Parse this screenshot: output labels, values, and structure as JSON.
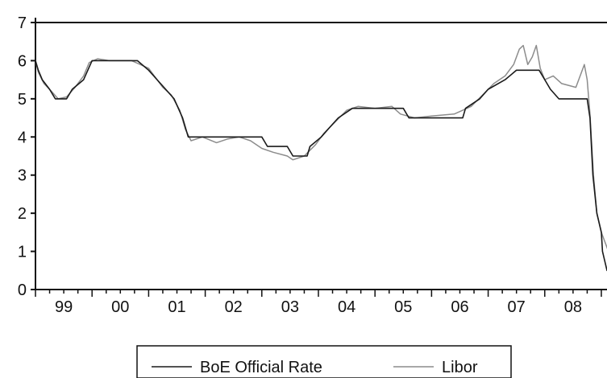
{
  "chart_data": {
    "type": "line",
    "title": "",
    "xlabel": "",
    "ylabel": "",
    "ylim": [
      0,
      7
    ],
    "yticks": [
      0,
      1,
      2,
      3,
      4,
      5,
      6,
      7
    ],
    "xlim": [
      1999.0,
      2009.1
    ],
    "xticks": [
      {
        "label": "99",
        "pos": 1999.5
      },
      {
        "label": "00",
        "pos": 2000.5
      },
      {
        "label": "01",
        "pos": 2001.5
      },
      {
        "label": "02",
        "pos": 2002.5
      },
      {
        "label": "03",
        "pos": 2003.5
      },
      {
        "label": "04",
        "pos": 2004.5
      },
      {
        "label": "05",
        "pos": 2005.5
      },
      {
        "label": "06",
        "pos": 2006.5
      },
      {
        "label": "07",
        "pos": 2007.5
      },
      {
        "label": "08",
        "pos": 2008.5
      }
    ],
    "grid": false,
    "legend_position": "bottom",
    "series": [
      {
        "name": "BoE Official Rate",
        "color": "#1a1a1a",
        "points": [
          [
            1999.0,
            6.0
          ],
          [
            1999.05,
            5.75
          ],
          [
            1999.12,
            5.5
          ],
          [
            1999.25,
            5.25
          ],
          [
            1999.35,
            5.0
          ],
          [
            1999.55,
            5.0
          ],
          [
            1999.65,
            5.25
          ],
          [
            1999.85,
            5.5
          ],
          [
            2000.0,
            6.0
          ],
          [
            2000.5,
            6.0
          ],
          [
            2000.8,
            6.0
          ],
          [
            2001.0,
            5.75
          ],
          [
            2001.15,
            5.5
          ],
          [
            2001.3,
            5.25
          ],
          [
            2001.45,
            5.0
          ],
          [
            2001.6,
            4.5
          ],
          [
            2001.7,
            4.0
          ],
          [
            2002.0,
            4.0
          ],
          [
            2002.5,
            4.0
          ],
          [
            2003.0,
            4.0
          ],
          [
            2003.1,
            3.75
          ],
          [
            2003.45,
            3.75
          ],
          [
            2003.55,
            3.5
          ],
          [
            2003.8,
            3.5
          ],
          [
            2003.85,
            3.75
          ],
          [
            2004.05,
            4.0
          ],
          [
            2004.2,
            4.25
          ],
          [
            2004.35,
            4.5
          ],
          [
            2004.6,
            4.75
          ],
          [
            2005.5,
            4.75
          ],
          [
            2005.6,
            4.5
          ],
          [
            2006.55,
            4.5
          ],
          [
            2006.6,
            4.75
          ],
          [
            2006.85,
            5.0
          ],
          [
            2007.0,
            5.25
          ],
          [
            2007.3,
            5.5
          ],
          [
            2007.5,
            5.75
          ],
          [
            2007.9,
            5.75
          ],
          [
            2008.0,
            5.5
          ],
          [
            2008.1,
            5.25
          ],
          [
            2008.25,
            5.0
          ],
          [
            2008.75,
            5.0
          ],
          [
            2008.8,
            4.5
          ],
          [
            2008.85,
            3.0
          ],
          [
            2008.92,
            2.0
          ],
          [
            2009.0,
            1.5
          ],
          [
            2009.02,
            1.0
          ],
          [
            2009.1,
            0.5
          ],
          [
            2009.25,
            0.5
          ]
        ]
      },
      {
        "name": "Libor",
        "color": "#8c8c8c",
        "points": [
          [
            1999.0,
            6.0
          ],
          [
            1999.05,
            5.7
          ],
          [
            1999.15,
            5.4
          ],
          [
            1999.28,
            5.2
          ],
          [
            1999.4,
            5.0
          ],
          [
            1999.55,
            5.05
          ],
          [
            1999.7,
            5.3
          ],
          [
            1999.85,
            5.6
          ],
          [
            1999.95,
            5.95
          ],
          [
            2000.1,
            6.05
          ],
          [
            2000.3,
            6.0
          ],
          [
            2000.5,
            6.0
          ],
          [
            2000.7,
            6.0
          ],
          [
            2000.85,
            5.9
          ],
          [
            2001.0,
            5.8
          ],
          [
            2001.1,
            5.6
          ],
          [
            2001.25,
            5.3
          ],
          [
            2001.4,
            5.1
          ],
          [
            2001.55,
            4.7
          ],
          [
            2001.65,
            4.2
          ],
          [
            2001.75,
            3.9
          ],
          [
            2001.95,
            4.0
          ],
          [
            2002.2,
            3.85
          ],
          [
            2002.4,
            3.95
          ],
          [
            2002.6,
            4.0
          ],
          [
            2002.8,
            3.9
          ],
          [
            2003.0,
            3.7
          ],
          [
            2003.2,
            3.6
          ],
          [
            2003.45,
            3.5
          ],
          [
            2003.55,
            3.4
          ],
          [
            2003.75,
            3.5
          ],
          [
            2003.95,
            3.8
          ],
          [
            2004.1,
            4.1
          ],
          [
            2004.3,
            4.4
          ],
          [
            2004.5,
            4.7
          ],
          [
            2004.7,
            4.8
          ],
          [
            2005.0,
            4.75
          ],
          [
            2005.3,
            4.8
          ],
          [
            2005.45,
            4.6
          ],
          [
            2005.7,
            4.5
          ],
          [
            2006.0,
            4.55
          ],
          [
            2006.4,
            4.6
          ],
          [
            2006.7,
            4.8
          ],
          [
            2006.9,
            5.1
          ],
          [
            2007.1,
            5.4
          ],
          [
            2007.3,
            5.6
          ],
          [
            2007.45,
            5.9
          ],
          [
            2007.55,
            6.3
          ],
          [
            2007.62,
            6.4
          ],
          [
            2007.7,
            5.9
          ],
          [
            2007.78,
            6.1
          ],
          [
            2007.85,
            6.4
          ],
          [
            2007.92,
            5.8
          ],
          [
            2008.0,
            5.5
          ],
          [
            2008.15,
            5.6
          ],
          [
            2008.3,
            5.4
          ],
          [
            2008.55,
            5.3
          ],
          [
            2008.7,
            5.9
          ],
          [
            2008.75,
            5.5
          ],
          [
            2008.8,
            4.6
          ],
          [
            2008.86,
            3.0
          ],
          [
            2008.92,
            2.0
          ],
          [
            2009.0,
            1.5
          ],
          [
            2009.1,
            1.1
          ],
          [
            2009.2,
            0.7
          ],
          [
            2009.25,
            0.6
          ]
        ]
      }
    ]
  }
}
